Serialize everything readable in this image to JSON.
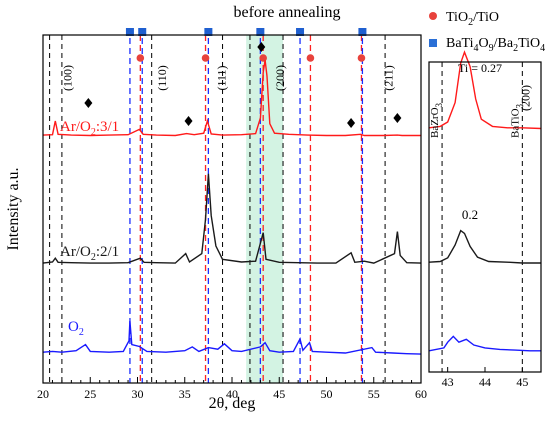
{
  "chart_data": [
    {
      "type": "line",
      "title": "before annealing",
      "xlabel": "2θ, deg",
      "ylabel": "Intensity a.u.",
      "xlim": [
        20,
        60
      ],
      "x_ticks": [
        20,
        25,
        30,
        35,
        40,
        45,
        50,
        55,
        60
      ],
      "series": [
        {
          "name": "Ar/O2:3/1",
          "label_main": "Ar/O",
          "label_sub": "2",
          "label_rest": ":3/1",
          "color": "#ff1a1a",
          "points": [
            [
              20,
              0.05
            ],
            [
              21,
              0.06
            ],
            [
              21.3,
              0.42
            ],
            [
              21.6,
              0.07
            ],
            [
              23,
              0.05
            ],
            [
              25,
              0.04
            ],
            [
              27,
              0.05
            ],
            [
              29,
              0.06
            ],
            [
              30.2,
              0.2
            ],
            [
              30.6,
              0.07
            ],
            [
              32,
              0.05
            ],
            [
              34,
              0.04
            ],
            [
              35.2,
              0.09
            ],
            [
              36,
              0.06
            ],
            [
              37,
              0.1
            ],
            [
              37.4,
              0.42
            ],
            [
              37.8,
              0.08
            ],
            [
              39,
              0.05
            ],
            [
              41,
              0.06
            ],
            [
              42.5,
              0.09
            ],
            [
              43.0,
              0.5
            ],
            [
              43.3,
              1.7
            ],
            [
              43.5,
              2.02
            ],
            [
              43.7,
              1.6
            ],
            [
              44.0,
              0.35
            ],
            [
              44.5,
              0.1
            ],
            [
              46,
              0.07
            ],
            [
              48,
              0.05
            ],
            [
              50,
              0.04
            ],
            [
              52,
              0.04
            ],
            [
              53.6,
              0.07
            ],
            [
              54,
              0.04
            ],
            [
              56,
              0.04
            ],
            [
              57.5,
              0.05
            ],
            [
              58,
              0.04
            ],
            [
              60,
              0.04
            ]
          ]
        },
        {
          "name": "Ar/O2:2/1",
          "label_main": "Ar/O",
          "label_sub": "2",
          "label_rest": ":2/1",
          "color": "#1a1a1a",
          "points": [
            [
              20,
              0.05
            ],
            [
              21,
              0.08
            ],
            [
              21.3,
              0.18
            ],
            [
              21.6,
              0.07
            ],
            [
              23,
              0.06
            ],
            [
              25,
              0.05
            ],
            [
              27,
              0.05
            ],
            [
              29,
              0.06
            ],
            [
              30.3,
              0.18
            ],
            [
              30.7,
              0.07
            ],
            [
              32,
              0.06
            ],
            [
              34,
              0.05
            ],
            [
              35.1,
              0.3
            ],
            [
              35.5,
              0.08
            ],
            [
              36.8,
              0.3
            ],
            [
              37.2,
              1.2
            ],
            [
              37.5,
              2.4
            ],
            [
              37.8,
              1.3
            ],
            [
              38.3,
              0.5
            ],
            [
              39,
              0.15
            ],
            [
              41,
              0.08
            ],
            [
              42.5,
              0.1
            ],
            [
              43.3,
              0.85
            ],
            [
              43.6,
              0.15
            ],
            [
              45,
              0.07
            ],
            [
              47,
              0.06
            ],
            [
              49,
              0.05
            ],
            [
              51,
              0.05
            ],
            [
              52.6,
              0.32
            ],
            [
              53,
              0.07
            ],
            [
              54,
              0.1
            ],
            [
              55,
              0.05
            ],
            [
              57.2,
              0.3
            ],
            [
              57.5,
              0.88
            ],
            [
              57.8,
              0.25
            ],
            [
              58.5,
              0.06
            ],
            [
              60,
              0.05
            ]
          ]
        },
        {
          "name": "O2",
          "label_main": "O",
          "label_sub": "2",
          "label_rest": "",
          "color": "#1a1aff",
          "points": [
            [
              20,
              0.1
            ],
            [
              21,
              0.12
            ],
            [
              22,
              0.1
            ],
            [
              23.5,
              0.14
            ],
            [
              24.5,
              0.3
            ],
            [
              25,
              0.12
            ],
            [
              27,
              0.1
            ],
            [
              28.5,
              0.12
            ],
            [
              29.1,
              0.4
            ],
            [
              29.2,
              0.92
            ],
            [
              29.4,
              0.3
            ],
            [
              30.2,
              0.25
            ],
            [
              31,
              0.12
            ],
            [
              33,
              0.1
            ],
            [
              35,
              0.14
            ],
            [
              35.8,
              0.24
            ],
            [
              36.5,
              0.12
            ],
            [
              37.5,
              0.22
            ],
            [
              38.5,
              0.18
            ],
            [
              39.2,
              0.32
            ],
            [
              40,
              0.14
            ],
            [
              41,
              0.12
            ],
            [
              43.0,
              0.24
            ],
            [
              43.5,
              0.35
            ],
            [
              44,
              0.14
            ],
            [
              45,
              0.1
            ],
            [
              46.5,
              0.12
            ],
            [
              47.2,
              0.45
            ],
            [
              47.5,
              0.15
            ],
            [
              48.2,
              0.35
            ],
            [
              48.5,
              0.12
            ],
            [
              50,
              0.1
            ],
            [
              52,
              0.08
            ],
            [
              54.8,
              0.22
            ],
            [
              55.2,
              0.1
            ],
            [
              57,
              0.08
            ],
            [
              58.5,
              0.06
            ],
            [
              60,
              0.05
            ]
          ]
        }
      ],
      "peak_labels": [
        {
          "x": 23,
          "text": "(100)"
        },
        {
          "x": 33,
          "text": "(110)"
        },
        {
          "x": 39.3,
          "text": "(111)"
        },
        {
          "x": 45.5,
          "text": "(200)"
        },
        {
          "x": 57,
          "text": "(211)"
        }
      ],
      "ref_lines": {
        "black_dashed": [
          20.7,
          22.0,
          31.5,
          39.0,
          41.9,
          45.4,
          56.2
        ],
        "red_dashed": [
          30.3,
          37.2,
          43.3,
          48.3,
          53.7
        ],
        "blue_dashed": [
          29.2,
          30.5,
          37.5,
          43.0,
          47.2,
          53.8
        ]
      },
      "highlight_band": [
        41.5,
        45.4
      ],
      "top_markers": {
        "blue_squares": [
          29.2,
          30.5,
          37.5,
          43.0,
          47.2,
          53.8
        ],
        "red_circles": [
          30.3,
          37.2,
          43.3,
          48.3,
          53.7
        ],
        "black_diamond": [
          43.1
        ]
      },
      "diamond_markers": [
        24.8,
        35.4,
        52.6,
        57.5,
        43.1
      ],
      "legend": [
        {
          "marker": "circle",
          "color": "#e8423c",
          "main": "TiO",
          "sub": "2",
          "rest": "/TiO"
        },
        {
          "marker": "square",
          "color": "#2a6fd6",
          "main": "BaTi",
          "sub": "4",
          "mid": "O",
          "sub2": "9",
          "mid2": "/Ba",
          "sub3": "2",
          "rest": "TiO",
          "sub4": "4"
        }
      ]
    },
    {
      "type": "line",
      "xlim": [
        42.5,
        45.5
      ],
      "x_ticks": [
        43,
        44,
        45
      ],
      "ref_labels": [
        {
          "x": 42.85,
          "main": "BaZrO",
          "sub": "3"
        },
        {
          "x": 45.0,
          "main": "BaTiO",
          "sub": "3",
          "extra": "(200)"
        }
      ],
      "annotations": [
        {
          "text": "Ti = 0.27",
          "color": "#ff1a1a"
        },
        {
          "text": "0.2",
          "color": "#000000"
        }
      ],
      "series": [
        {
          "name": "Ti = 0.27",
          "color": "#ff1a1a",
          "points": [
            [
              42.5,
              0.1
            ],
            [
              42.8,
              0.12
            ],
            [
              43.0,
              0.18
            ],
            [
              43.2,
              0.45
            ],
            [
              43.35,
              1.0
            ],
            [
              43.45,
              1.15
            ],
            [
              43.6,
              0.95
            ],
            [
              43.75,
              0.5
            ],
            [
              43.9,
              0.22
            ],
            [
              44.2,
              0.12
            ],
            [
              44.6,
              0.1
            ],
            [
              45.0,
              0.1
            ],
            [
              45.5,
              0.09
            ]
          ]
        },
        {
          "name": "0.2",
          "color": "#1a1a1a",
          "points": [
            [
              42.5,
              0.08
            ],
            [
              42.8,
              0.09
            ],
            [
              43.0,
              0.14
            ],
            [
              43.2,
              0.32
            ],
            [
              43.35,
              0.52
            ],
            [
              43.45,
              0.48
            ],
            [
              43.6,
              0.3
            ],
            [
              43.8,
              0.15
            ],
            [
              44.1,
              0.09
            ],
            [
              44.6,
              0.08
            ],
            [
              45.0,
              0.07
            ],
            [
              45.5,
              0.07
            ]
          ]
        },
        {
          "name": "O2",
          "color": "#1a1aff",
          "points": [
            [
              42.5,
              0.1
            ],
            [
              42.9,
              0.14
            ],
            [
              43.0,
              0.22
            ],
            [
              43.15,
              0.3
            ],
            [
              43.3,
              0.22
            ],
            [
              43.5,
              0.26
            ],
            [
              43.7,
              0.18
            ],
            [
              44.0,
              0.14
            ],
            [
              44.4,
              0.12
            ],
            [
              44.8,
              0.11
            ],
            [
              45.2,
              0.1
            ],
            [
              45.5,
              0.1
            ]
          ]
        }
      ]
    }
  ]
}
